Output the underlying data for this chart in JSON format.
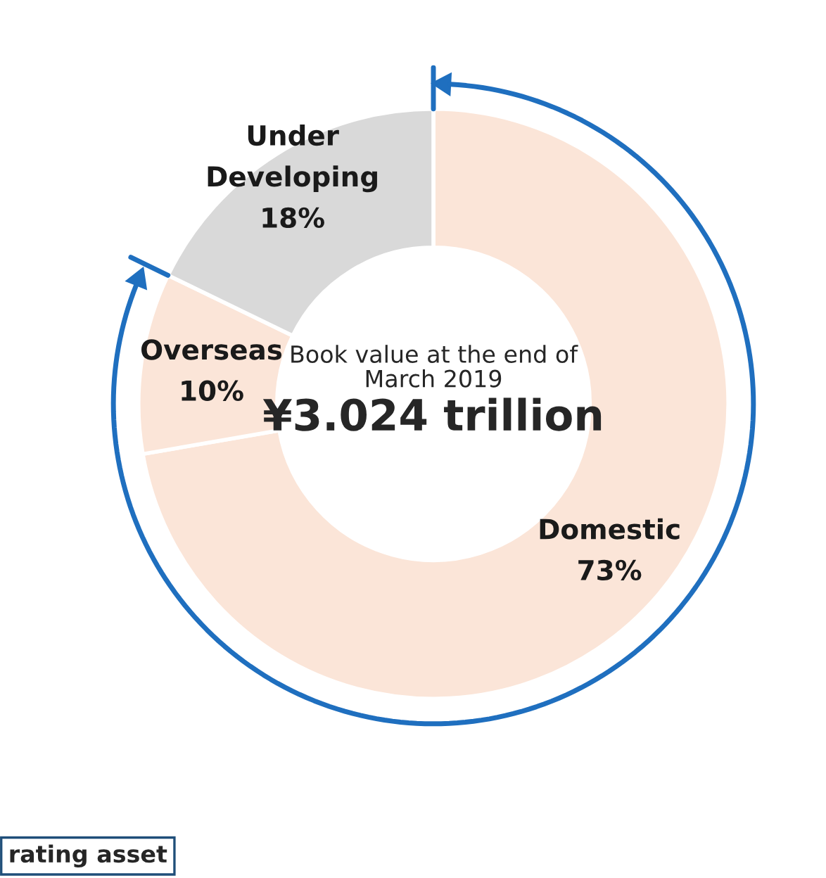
{
  "chart_data": {
    "type": "donut",
    "categories": [
      "Domestic",
      "Overseas",
      "Under Developing"
    ],
    "values": [
      73,
      10,
      18
    ],
    "value_labels": [
      "73%",
      "10%",
      "18%"
    ],
    "colors": [
      "#fbe5d8",
      "#fbe5d8",
      "#d9d9d9"
    ],
    "annotations": [
      "Book value at the end of\nMarch 2019",
      "¥3.024 trillion",
      "rating asset"
    ],
    "legend": false
  }
}
